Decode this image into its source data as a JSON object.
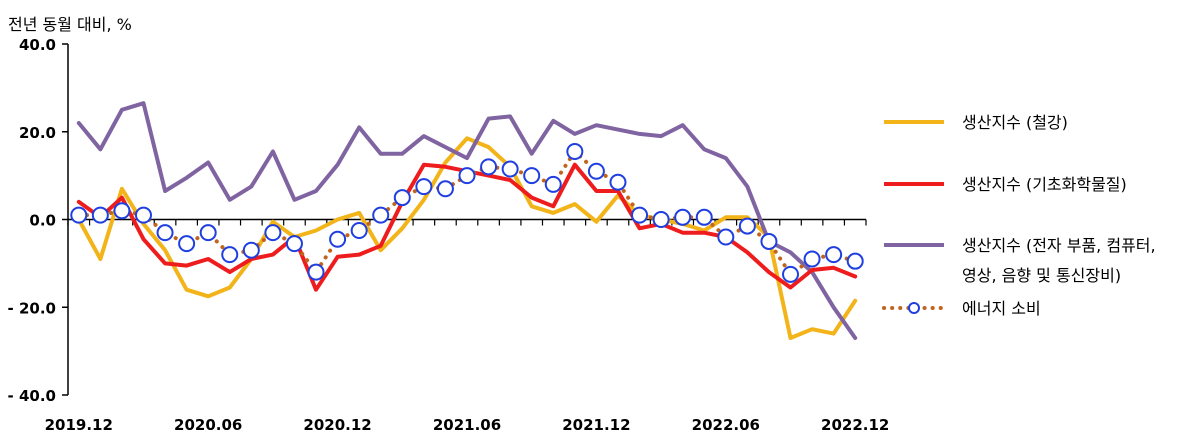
{
  "chart_data": {
    "type": "line",
    "unit_label": "전년 동월 대비, %",
    "ylim": [
      -40,
      40
    ],
    "y_ticks": [
      {
        "value": 40,
        "label": "40.0"
      },
      {
        "value": 20,
        "label": "20.0"
      },
      {
        "value": 0,
        "label": "0.0"
      },
      {
        "value": -20,
        "label": "- 20.0"
      },
      {
        "value": -40,
        "label": "- 40.0"
      }
    ],
    "x_tick_labels": [
      {
        "index": 0,
        "label": "2019.12"
      },
      {
        "index": 6,
        "label": "2020.06"
      },
      {
        "index": 12,
        "label": "2020.12"
      },
      {
        "index": 18,
        "label": "2021.06"
      },
      {
        "index": 24,
        "label": "2021.12"
      },
      {
        "index": 30,
        "label": "2022.06"
      },
      {
        "index": 36,
        "label": "2022.12"
      }
    ],
    "x_start": "2019.12",
    "x_end": "2022.12",
    "grid": false,
    "legend_position": "right",
    "series": [
      {
        "name": "생산지수 (철강)",
        "color": "#F2B418",
        "style": "line",
        "values": [
          0,
          -9,
          7,
          -1,
          -7,
          -16,
          -17.5,
          -15.5,
          -9,
          -0.5,
          -4,
          -2.5,
          0,
          1.5,
          -7,
          -2,
          4.5,
          13,
          18.5,
          16.5,
          12,
          3,
          1.5,
          3.5,
          -0.5,
          5.5,
          1,
          0,
          -1,
          -2.5,
          0.5,
          0.5,
          -4,
          -27,
          -25,
          -26,
          -18.5
        ]
      },
      {
        "name": "생산지수 (기초화학물질)",
        "color": "#EE1C1C",
        "style": "line",
        "values": [
          4,
          0.5,
          5,
          -4.5,
          -10,
          -10.5,
          -9,
          -12,
          -9,
          -8,
          -4,
          -16,
          -8.5,
          -8,
          -6,
          4,
          12.5,
          12,
          11,
          10,
          9,
          5,
          3,
          12.5,
          6.5,
          6.5,
          -2,
          -1,
          -3,
          -3,
          -4,
          -7.5,
          -12,
          -15.5,
          -11.5,
          -11,
          -13
        ]
      },
      {
        "name": "생산지수 (전자 부품, 컴퓨터, 영상, 음향 및 통신장비)",
        "name_line1": "생산지수 (전자 부품, 컴퓨터,",
        "name_line2": "영상, 음향 및 통신장비)",
        "color": "#8064A2",
        "style": "line",
        "values": [
          22,
          16,
          25,
          26.5,
          6.5,
          9.5,
          13,
          4.5,
          7.5,
          15.5,
          4.5,
          6.5,
          12.5,
          21,
          15,
          15,
          19,
          16.5,
          14,
          23,
          23.5,
          15,
          22.5,
          19.5,
          21.5,
          20.5,
          19.5,
          19,
          21.5,
          16,
          14,
          7.5,
          -5,
          -7.5,
          -12,
          -20,
          -27
        ]
      },
      {
        "name": "에너지 소비",
        "color": "#C0641E",
        "marker_fill": "#ffffff",
        "marker_stroke": "#1F3FE0",
        "style": "dotted-markers",
        "values": [
          1,
          1,
          2,
          1,
          -3,
          -5.5,
          -3,
          -8,
          -7,
          -3,
          -5.5,
          -12,
          -4.5,
          -2.5,
          1,
          5,
          7.5,
          7,
          10,
          12,
          11.5,
          10,
          8,
          15.5,
          11,
          8.5,
          1,
          0,
          0.5,
          0.5,
          -4,
          -1.5,
          -5,
          -12.5,
          -9,
          -8,
          -9.5
        ]
      }
    ]
  }
}
